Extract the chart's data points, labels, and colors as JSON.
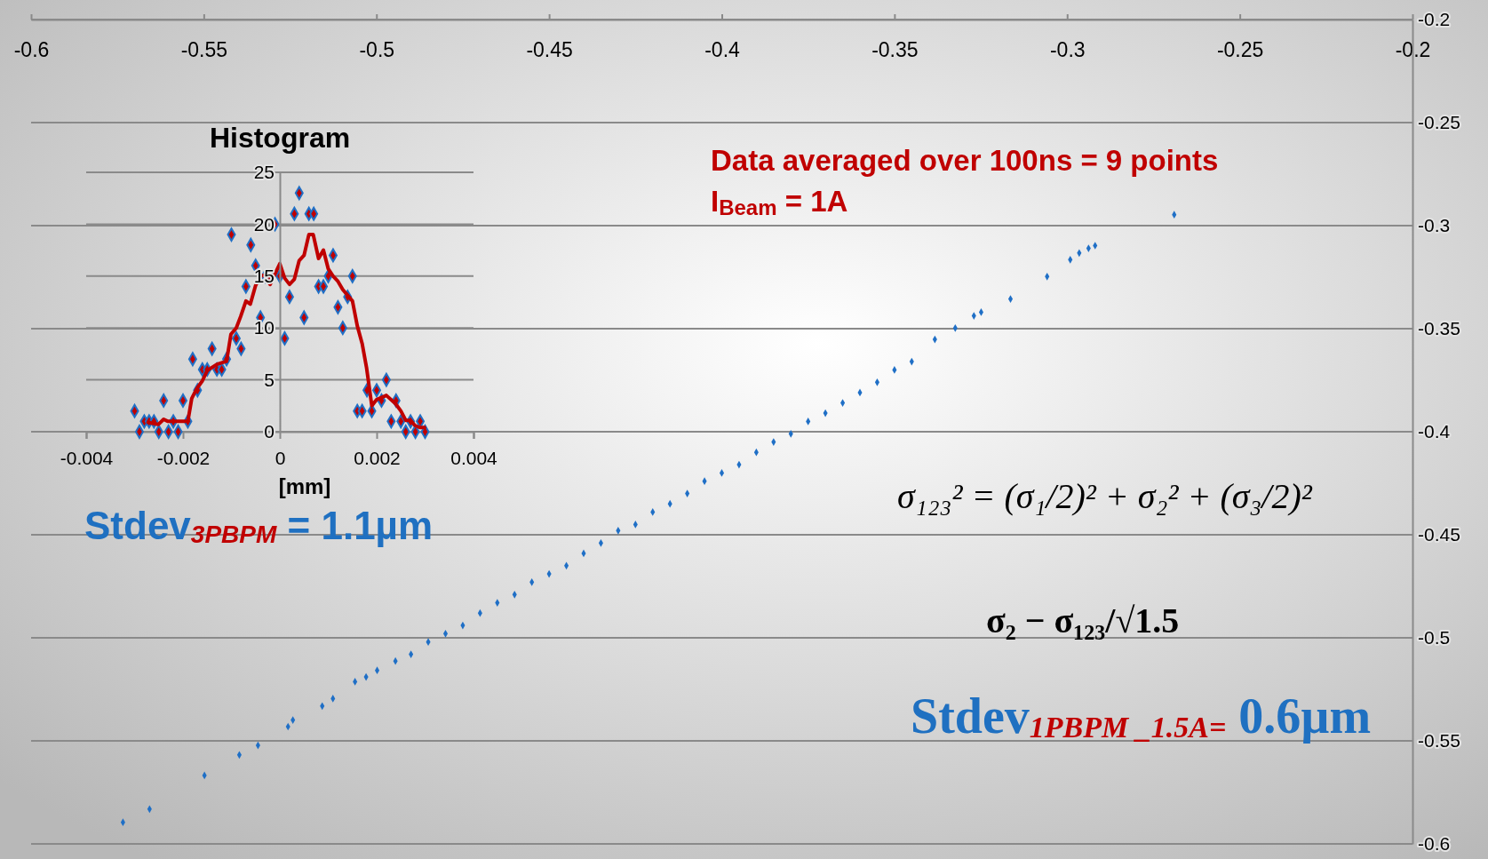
{
  "chart_data": [
    {
      "type": "scatter",
      "x": [
        -0.5734,
        -0.5657,
        -0.5498,
        -0.5397,
        -0.5343,
        -0.5256,
        -0.5242,
        -0.5157,
        -0.5126,
        -0.5062,
        -0.503,
        -0.4998,
        -0.4945,
        -0.49,
        -0.485,
        -0.48,
        -0.475,
        -0.47,
        -0.465,
        -0.46,
        -0.455,
        -0.45,
        -0.445,
        -0.44,
        -0.435,
        -0.43,
        -0.425,
        -0.42,
        -0.415,
        -0.41,
        -0.405,
        -0.4,
        -0.395,
        -0.39,
        -0.385,
        -0.38,
        -0.375,
        -0.37,
        -0.365,
        -0.36,
        -0.355,
        -0.35,
        -0.345,
        -0.3383,
        -0.3324,
        -0.327,
        -0.3249,
        -0.3164,
        -0.3058,
        -0.2991,
        -0.2965,
        -0.2938,
        -0.2919,
        -0.269
      ],
      "series": [
        {
          "color": "#1f6fc6",
          "values": [
            -0.5895,
            -0.5831,
            -0.5668,
            -0.5568,
            -0.5522,
            -0.5431,
            -0.5399,
            -0.5331,
            -0.5295,
            -0.5213,
            -0.519,
            -0.5158,
            -0.5113,
            -0.508,
            -0.502,
            -0.498,
            -0.494,
            -0.488,
            -0.483,
            -0.479,
            -0.473,
            -0.469,
            -0.465,
            -0.459,
            -0.454,
            -0.448,
            -0.445,
            -0.439,
            -0.435,
            -0.43,
            -0.424,
            -0.42,
            -0.416,
            -0.41,
            -0.405,
            -0.401,
            -0.395,
            -0.391,
            -0.386,
            -0.381,
            -0.376,
            -0.37,
            -0.366,
            -0.3552,
            -0.3497,
            -0.3438,
            -0.342,
            -0.3356,
            -0.3247,
            -0.3165,
            -0.3133,
            -0.311,
            -0.3097,
            -0.2947
          ]
        }
      ],
      "xlim": [
        -0.6,
        -0.2
      ],
      "xticks": [
        -0.6,
        -0.55,
        -0.5,
        -0.45,
        -0.4,
        -0.35,
        -0.3,
        -0.25,
        -0.2
      ],
      "ylim": [
        -0.6,
        -0.2
      ],
      "yticks": [
        -0.6,
        -0.55,
        -0.5,
        -0.45,
        -0.4,
        -0.35,
        -0.3,
        -0.25,
        -0.2
      ],
      "grid": "y",
      "marker": "diamond",
      "annotations": [
        "Data averaged over 100ns = 9 points",
        "I$_{Beam}$ = 1A",
        "Stdev$_{3PBPM}$ = 1.1µm",
        "σ₁₂₃² = (σ₁/2)² + σ₂² + (σ₃/2)²",
        "σ₂ − σ₁₂₃/√1.5",
        "Stdev$_{1PBPM _1.5A=}$ 0.6µm"
      ]
    },
    {
      "type": "scatter",
      "title": "Histogram",
      "xlabel": "[mm]",
      "x": [
        -0.003,
        -0.0029,
        -0.0028,
        -0.0027,
        -0.0026,
        -0.0025,
        -0.0024,
        -0.0023,
        -0.0022,
        -0.0021,
        -0.002,
        -0.0019,
        -0.0018,
        -0.0017,
        -0.0016,
        -0.0015,
        -0.0014,
        -0.0013,
        -0.0012,
        -0.0011,
        -0.001,
        -0.0009,
        -0.0008,
        -0.0007,
        -0.0006,
        -0.0005,
        -0.0004,
        -0.0003,
        -0.0002,
        -0.0001,
        0,
        0.0001,
        0.0002,
        0.0003,
        0.0004,
        0.0005,
        0.0006,
        0.0007,
        0.0008,
        0.0009,
        0.001,
        0.0011,
        0.0012,
        0.0013,
        0.0014,
        0.0015,
        0.0016,
        0.0017,
        0.0018,
        0.0019,
        0.002,
        0.0021,
        0.0022,
        0.0023,
        0.0024,
        0.0025,
        0.0026,
        0.0027,
        0.0028,
        0.0029,
        0.003
      ],
      "series": [
        {
          "color": "#c00000",
          "values": [
            2,
            0,
            1,
            1,
            1,
            0,
            3,
            0,
            1,
            0,
            3,
            1,
            7,
            4,
            6,
            6,
            8,
            6,
            6,
            7,
            19,
            9,
            8,
            14,
            18,
            16,
            11,
            15,
            15,
            20,
            15,
            9,
            13,
            21,
            23,
            11,
            21,
            21,
            14,
            14,
            15,
            17,
            12,
            10,
            13,
            15,
            2,
            2,
            4,
            2,
            4,
            3,
            5,
            1,
            3,
            1,
            0,
            1,
            0,
            1,
            0
          ]
        },
        {
          "type": "line",
          "color": "#c00000",
          "marker": "none",
          "x": [
            -0.00272,
            -0.00251,
            -0.0024,
            -0.00231,
            -0.002,
            -0.0019,
            -0.00182,
            -0.00171,
            -0.0016,
            -0.0015,
            -0.0013,
            -0.0011,
            -0.00101,
            -0.0009,
            -0.00081,
            -0.0007,
            -0.00061,
            -0.0005,
            -0.0004,
            -0.00031,
            -0.0002,
            -0.0001,
            0,
            0.0001,
            0.0002,
            0.0003,
            0.0004,
            0.0005,
            0.0006,
            0.00069,
            0.0008,
            0.0009,
            0.001,
            0.0011,
            0.0012,
            0.0013,
            0.0015,
            0.0016,
            0.0017,
            0.00179,
            0.0019,
            0.002,
            0.0022,
            0.00239,
            0.0025,
            0.0026,
            0.0027,
            0.00279,
            0.0029,
            0.00299
          ],
          "values": [
            0.9,
            0.7,
            1.2,
            1.0,
            1.0,
            1.0,
            3.2,
            4.2,
            4.9,
            5.9,
            6.5,
            6.8,
            9.4,
            10.0,
            11.1,
            12.6,
            12.3,
            14.1,
            15.0,
            15.1,
            14.2,
            15.2,
            16.2,
            14.8,
            14.2,
            14.7,
            16.5,
            17.0,
            19.0,
            19.0,
            16.7,
            17.5,
            15.7,
            15.0,
            14.5,
            13.7,
            12.6,
            10.2,
            8.5,
            6.2,
            2.5,
            3.1,
            3.5,
            2.7,
            2.0,
            1.1,
            1.1,
            0.6,
            0.4,
            0.4
          ]
        }
      ],
      "xlim": [
        -0.004,
        0.004
      ],
      "xticks": [
        -0.004,
        -0.002,
        0,
        0.002,
        0.004
      ],
      "ylim": [
        0,
        25
      ],
      "yticks": [
        0,
        5,
        10,
        15,
        20,
        25
      ],
      "grid": "y",
      "marker": "diamond"
    }
  ]
}
